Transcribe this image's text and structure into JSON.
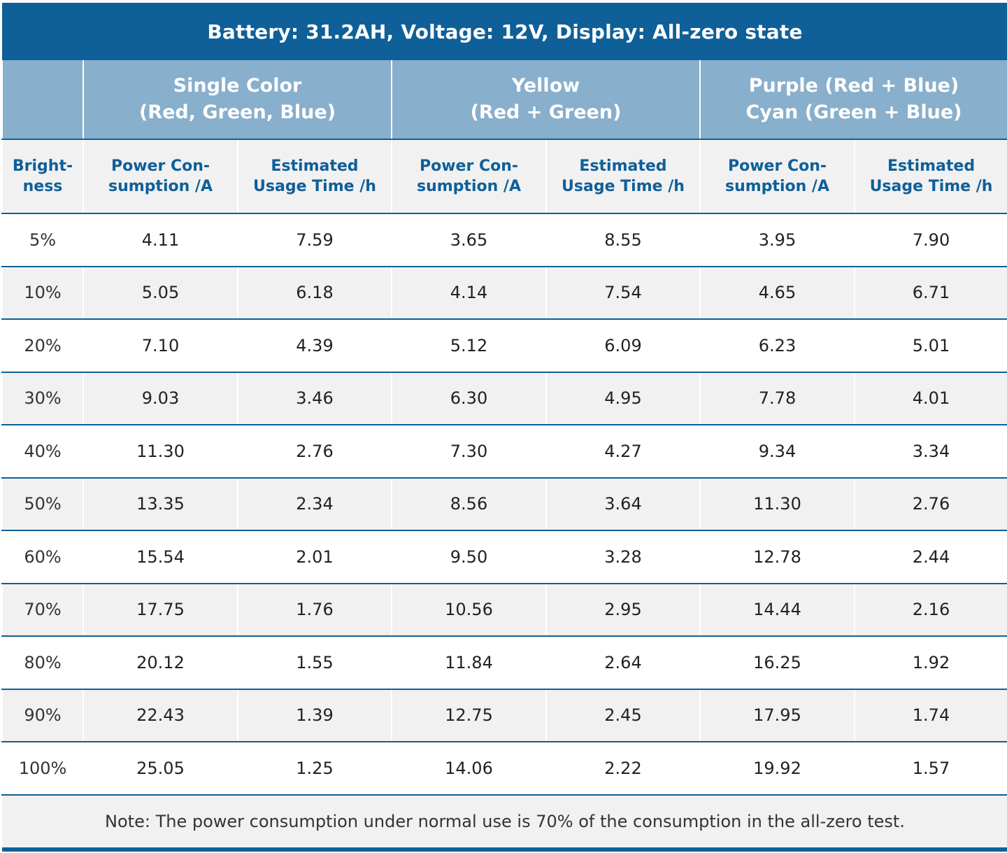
{
  "title": "Battery: 31.2AH, Voltage: 12V, Display: All-zero state",
  "groups": [
    {
      "line1": "Single Color",
      "line2": "(Red, Green, Blue)"
    },
    {
      "line1": "Yellow",
      "line2": "(Red + Green)"
    },
    {
      "line1": "Purple (Red + Blue)",
      "line2": "Cyan (Green + Blue)"
    }
  ],
  "subheaders": {
    "brightness": [
      "Bright-",
      "ness"
    ],
    "power": [
      "Power Con-",
      "sumption /A"
    ],
    "time": [
      "Estimated",
      "Usage Time /h"
    ]
  },
  "rows": [
    [
      "5%",
      "4.11",
      "7.59",
      "3.65",
      "8.55",
      "3.95",
      "7.90"
    ],
    [
      "10%",
      "5.05",
      "6.18",
      "4.14",
      "7.54",
      "4.65",
      "6.71"
    ],
    [
      "20%",
      "7.10",
      "4.39",
      "5.12",
      "6.09",
      "6.23",
      "5.01"
    ],
    [
      "30%",
      "9.03",
      "3.46",
      "6.30",
      "4.95",
      "7.78",
      "4.01"
    ],
    [
      "40%",
      "11.30",
      "2.76",
      "7.30",
      "4.27",
      "9.34",
      "3.34"
    ],
    [
      "50%",
      "13.35",
      "2.34",
      "8.56",
      "3.64",
      "11.30",
      "2.76"
    ],
    [
      "60%",
      "15.54",
      "2.01",
      "9.50",
      "3.28",
      "12.78",
      "2.44"
    ],
    [
      "70%",
      "17.75",
      "1.76",
      "10.56",
      "2.95",
      "14.44",
      "2.16"
    ],
    [
      "80%",
      "20.12",
      "1.55",
      "11.84",
      "2.64",
      "16.25",
      "1.92"
    ],
    [
      "90%",
      "22.43",
      "1.39",
      "12.75",
      "2.45",
      "17.95",
      "1.74"
    ],
    [
      "100%",
      "25.05",
      "1.25",
      "14.06",
      "2.22",
      "19.92",
      "1.57"
    ]
  ],
  "note": "Note: The power consumption under normal use is 70% of the consumption in the all-zero test.",
  "colors": {
    "primary": "#0f5f98",
    "header_light": "#88afcb",
    "stripe": "#f1f1f1"
  }
}
